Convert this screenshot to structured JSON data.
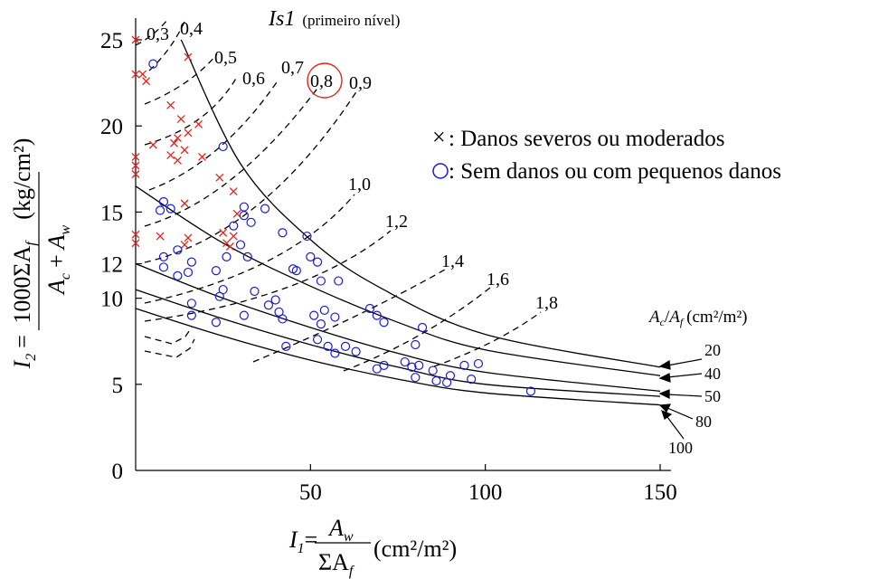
{
  "chart_data": {
    "type": "scatter",
    "title": {
      "symbol": "Is1",
      "note": "(primeiro nível)"
    },
    "x_axis": {
      "range": [
        0,
        150
      ],
      "ticks": [
        "50",
        "100",
        "150"
      ],
      "tick_values": [
        50,
        100,
        150
      ],
      "label": {
        "lhs": "I",
        "sub": "1",
        "eq": "=",
        "num": "A",
        "num_sub": "w",
        "den": "ΣA",
        "den_sub": "f",
        "unit": "(cm²/m²)"
      }
    },
    "y_axis": {
      "range": [
        0,
        25
      ],
      "ticks": [
        "0",
        "5",
        "10",
        "12",
        "15",
        "20",
        "25"
      ],
      "tick_values": [
        0,
        5,
        10,
        12,
        15,
        20,
        25
      ],
      "label": {
        "lhs": "I",
        "sub": "2",
        "eq": "=",
        "num": "1000ΣA",
        "num_sub": "f",
        "den": "A",
        "den_sub1": "c",
        "plus": "+",
        "den2": "A",
        "den_sub2": "w",
        "unit": "(kg/cm²)"
      }
    },
    "legend": {
      "damaged": {
        "symbol": "×",
        "text": ": Danos severos ou moderados",
        "color": "#e8211a"
      },
      "undamaged": {
        "symbol": "○",
        "text": ": Sem danos ou com pequenos danos",
        "color": "#1a1adb"
      }
    },
    "dashed_curves": [
      {
        "label": "0,3"
      },
      {
        "label": "0,4"
      },
      {
        "label": "0,5"
      },
      {
        "label": "0,6"
      },
      {
        "label": "0,7"
      },
      {
        "label": "0,8",
        "highlighted": true
      },
      {
        "label": "0,9"
      },
      {
        "label": "1,0"
      },
      {
        "label": "1,2"
      },
      {
        "label": "1,4"
      },
      {
        "label": "1,6"
      },
      {
        "label": "1,8"
      }
    ],
    "ratio_header": {
      "a": "A",
      "a_sub": "c",
      "slash": "/",
      "b": "A",
      "b_sub": "f",
      "unit": "(cm²/m²)"
    },
    "solid_curves": [
      {
        "label": "20",
        "points": [
          [
            13,
            25
          ],
          [
            30,
            17.8
          ],
          [
            50,
            13.4
          ],
          [
            70,
            10.6
          ],
          [
            100,
            7.9
          ],
          [
            150,
            6.0
          ]
        ]
      },
      {
        "label": "40",
        "points": [
          [
            0,
            16.5
          ],
          [
            25,
            13.2
          ],
          [
            50,
            10.7
          ],
          [
            75,
            8.6
          ],
          [
            100,
            7.0
          ],
          [
            150,
            5.5
          ]
        ]
      },
      {
        "label": "50",
        "points": [
          [
            0,
            12.0
          ],
          [
            25,
            10.0
          ],
          [
            50,
            8.3
          ],
          [
            75,
            6.8
          ],
          [
            100,
            5.7
          ],
          [
            150,
            4.6
          ]
        ]
      },
      {
        "label": "80",
        "points": [
          [
            0,
            10.5
          ],
          [
            25,
            8.8
          ],
          [
            50,
            7.3
          ],
          [
            75,
            6.0
          ],
          [
            100,
            5.0
          ],
          [
            150,
            4.3
          ]
        ]
      },
      {
        "label": "100",
        "points": [
          [
            0,
            9.4
          ],
          [
            25,
            7.8
          ],
          [
            50,
            6.4
          ],
          [
            75,
            5.3
          ],
          [
            100,
            4.5
          ],
          [
            150,
            3.8
          ]
        ]
      }
    ],
    "series": [
      {
        "name": "Danos severos ou moderados",
        "marker": "x",
        "color": "#e8211a",
        "points": [
          [
            0,
            25
          ],
          [
            0,
            23
          ],
          [
            2,
            23
          ],
          [
            3,
            22.6
          ],
          [
            0,
            18.2
          ],
          [
            0,
            17.7
          ],
          [
            0,
            17.2
          ],
          [
            0,
            13.7
          ],
          [
            0,
            13.2
          ],
          [
            5,
            18.9
          ],
          [
            7,
            13.6
          ],
          [
            10,
            18.3
          ],
          [
            12,
            18.0
          ],
          [
            11,
            19.0
          ],
          [
            14,
            18.6
          ],
          [
            13,
            20.4
          ],
          [
            15,
            19.6
          ],
          [
            18,
            20.1
          ],
          [
            10,
            21.2
          ],
          [
            19,
            18.2
          ],
          [
            15,
            24.0
          ],
          [
            14,
            15.5
          ],
          [
            15,
            13.5
          ],
          [
            14,
            13.1
          ],
          [
            24,
            17.0
          ],
          [
            28,
            16.2
          ],
          [
            25,
            13.8
          ],
          [
            26,
            13.2
          ],
          [
            28,
            13.6
          ],
          [
            27,
            13.0
          ],
          [
            29,
            14.9
          ],
          [
            12,
            19.3
          ]
        ]
      },
      {
        "name": "Sem danos ou com pequenos danos",
        "marker": "o",
        "color": "#1a1adb",
        "points": [
          [
            5,
            23.6
          ],
          [
            25,
            18.8
          ],
          [
            8,
            15.6
          ],
          [
            7,
            15.1
          ],
          [
            10,
            15.2
          ],
          [
            8,
            12.4
          ],
          [
            8,
            11.8
          ],
          [
            12,
            12.8
          ],
          [
            12,
            11.3
          ],
          [
            16,
            12.1
          ],
          [
            15,
            11.5
          ],
          [
            16,
            9.7
          ],
          [
            16,
            9.0
          ],
          [
            23,
            11.6
          ],
          [
            25,
            10.5
          ],
          [
            24,
            10.1
          ],
          [
            23,
            8.6
          ],
          [
            26,
            12.4
          ],
          [
            28,
            14.2
          ],
          [
            30,
            13.1
          ],
          [
            31,
            15.3
          ],
          [
            31,
            14.8
          ],
          [
            33,
            14.4
          ],
          [
            32,
            12.4
          ],
          [
            34,
            10.4
          ],
          [
            37,
            15.2
          ],
          [
            31,
            9.0
          ],
          [
            38,
            9.6
          ],
          [
            40,
            9.9
          ],
          [
            41,
            9.2
          ],
          [
            42,
            8.8
          ],
          [
            43,
            7.2
          ],
          [
            42,
            13.8
          ],
          [
            45,
            11.7
          ],
          [
            46,
            11.6
          ],
          [
            49,
            13.6
          ],
          [
            50,
            12.4
          ],
          [
            52,
            12.1
          ],
          [
            53,
            11.0
          ],
          [
            51,
            9.0
          ],
          [
            52,
            7.6
          ],
          [
            53,
            8.5
          ],
          [
            54,
            9.3
          ],
          [
            55,
            7.2
          ],
          [
            57,
            8.9
          ],
          [
            58,
            11.0
          ],
          [
            57,
            6.8
          ],
          [
            60,
            7.2
          ],
          [
            63,
            6.9
          ],
          [
            67,
            9.4
          ],
          [
            69,
            9.0
          ],
          [
            71,
            8.6
          ],
          [
            69,
            5.9
          ],
          [
            71,
            6.1
          ],
          [
            77,
            6.3
          ],
          [
            79,
            6.0
          ],
          [
            80,
            5.4
          ],
          [
            80,
            7.3
          ],
          [
            81,
            6.1
          ],
          [
            82,
            8.3
          ],
          [
            85,
            5.8
          ],
          [
            86,
            5.2
          ],
          [
            89,
            5.1
          ],
          [
            90,
            5.5
          ],
          [
            94,
            6.1
          ],
          [
            96,
            5.3
          ],
          [
            98,
            6.2
          ],
          [
            113,
            4.6
          ]
        ]
      }
    ]
  }
}
